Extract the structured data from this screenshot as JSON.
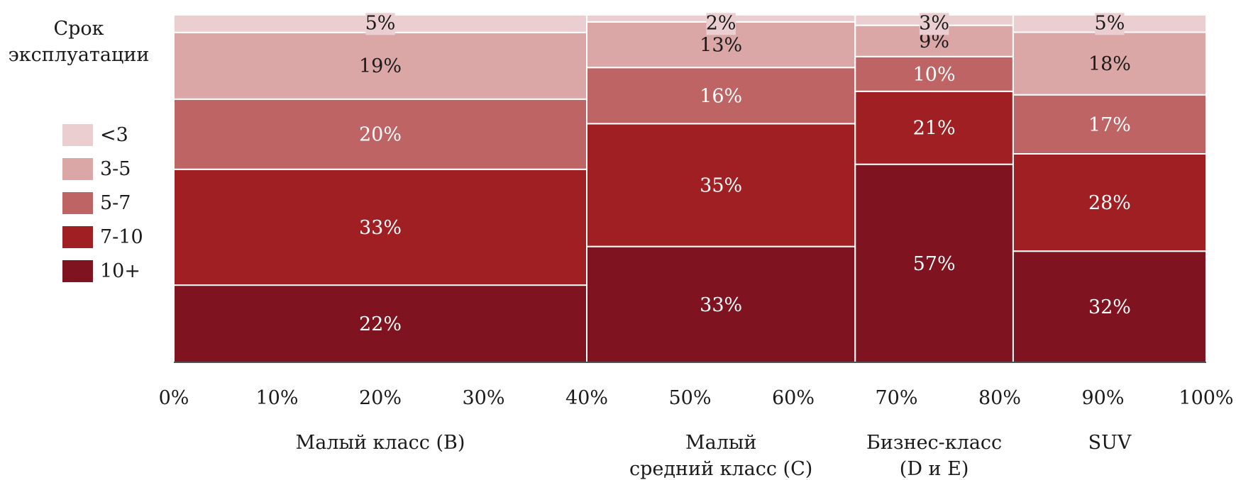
{
  "legend": {
    "title_line1": "Срок",
    "title_line2": "эксплуатации",
    "items": [
      {
        "label": "<3",
        "color": "#EBCFD0"
      },
      {
        "label": "3-5",
        "color": "#DAA6A6"
      },
      {
        "label": "5-7",
        "color": "#BF6465"
      },
      {
        "label": "7-10",
        "color": "#A01F22"
      },
      {
        "label": "10+",
        "color": "#7F131F"
      }
    ]
  },
  "chart_data": {
    "type": "marimekko",
    "x_ticks": [
      "0%",
      "10%",
      "20%",
      "30%",
      "40%",
      "50%",
      "60%",
      "70%",
      "80%",
      "90%",
      "100%"
    ],
    "xlim": [
      0,
      100
    ],
    "ylim": [
      0,
      100
    ],
    "stack_order_bottom_to_top": [
      "10+",
      "7-10",
      "5-7",
      "3-5",
      "<3"
    ],
    "columns": [
      {
        "label_lines": [
          "Малый класс (B)"
        ],
        "x_start": 0,
        "x_end": 40,
        "segments": {
          "10+": 22,
          "7-10": 33,
          "5-7": 20,
          "3-5": 19,
          "<3": 5
        },
        "labels": {
          "10+": "22%",
          "7-10": "33%",
          "5-7": "20%",
          "3-5": "19%",
          "<3": "5%"
        }
      },
      {
        "label_lines": [
          "Малый",
          "средний класс (C)"
        ],
        "x_start": 40,
        "x_end": 66,
        "segments": {
          "10+": 33,
          "7-10": 35,
          "5-7": 16,
          "3-5": 13,
          "<3": 2
        },
        "labels": {
          "10+": "33%",
          "7-10": "35%",
          "5-7": "16%",
          "3-5": "13%",
          "<3": "2%"
        }
      },
      {
        "label_lines": [
          "Бизнес-класс",
          "(D и E)"
        ],
        "x_start": 66,
        "x_end": 81.3,
        "segments": {
          "10+": 57,
          "7-10": 21,
          "5-7": 10,
          "3-5": 9,
          "<3": 3
        },
        "labels": {
          "10+": "57%",
          "7-10": "21%",
          "5-7": "10%",
          "3-5": "9%",
          "<3": "3%"
        }
      },
      {
        "label_lines": [
          "SUV"
        ],
        "x_start": 81.3,
        "x_end": 100,
        "segments": {
          "10+": 32,
          "7-10": 28,
          "5-7": 17,
          "3-5": 18,
          "<3": 5
        },
        "labels": {
          "10+": "32%",
          "7-10": "28%",
          "5-7": "17%",
          "3-5": "18%",
          "<3": "5%"
        }
      }
    ]
  }
}
